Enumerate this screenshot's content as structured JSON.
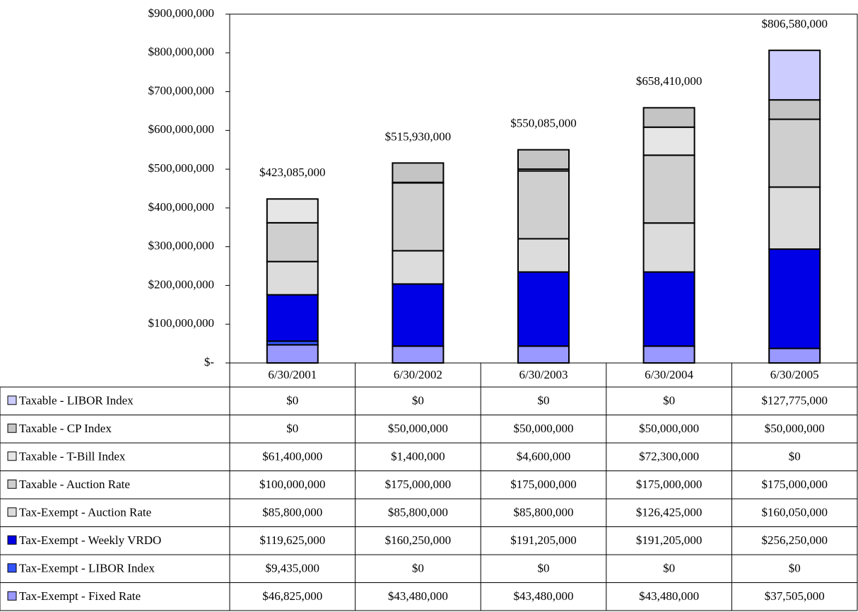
{
  "chart_data": {
    "type": "stacked-bar",
    "categories": [
      "6/30/2001",
      "6/30/2002",
      "6/30/2003",
      "6/30/2004",
      "6/30/2005"
    ],
    "series": [
      {
        "name": "Taxable - LIBOR Index",
        "color": "#ccccff",
        "values": [
          0,
          0,
          0,
          0,
          127775000
        ],
        "value_labels": [
          "$0",
          "$0",
          "$0",
          "$0",
          "$127,775,000"
        ]
      },
      {
        "name": "Taxable - CP Index",
        "color": "#c4c4c4",
        "values": [
          0,
          50000000,
          50000000,
          50000000,
          50000000
        ],
        "value_labels": [
          "$0",
          "$50,000,000",
          "$50,000,000",
          "$50,000,000",
          "$50,000,000"
        ]
      },
      {
        "name": "Taxable - T-Bill Index",
        "color": "#e6e6e6",
        "values": [
          61400000,
          1400000,
          4600000,
          72300000,
          0
        ],
        "value_labels": [
          "$61,400,000",
          "$1,400,000",
          "$4,600,000",
          "$72,300,000",
          "$0"
        ]
      },
      {
        "name": "Taxable - Auction Rate",
        "color": "#cfcfcf",
        "values": [
          100000000,
          175000000,
          175000000,
          175000000,
          175000000
        ],
        "value_labels": [
          "$100,000,000",
          "$175,000,000",
          "$175,000,000",
          "$175,000,000",
          "$175,000,000"
        ]
      },
      {
        "name": "Tax-Exempt - Auction Rate",
        "color": "#dcdcdc",
        "values": [
          85800000,
          85800000,
          85800000,
          126425000,
          160050000
        ],
        "value_labels": [
          "$85,800,000",
          "$85,800,000",
          "$85,800,000",
          "$126,425,000",
          "$160,050,000"
        ]
      },
      {
        "name": "Tax-Exempt - Weekly VRDO",
        "color": "#0000e6",
        "values": [
          119625000,
          160250000,
          191205000,
          191205000,
          256250000
        ],
        "value_labels": [
          "$119,625,000",
          "$160,250,000",
          "$191,205,000",
          "$191,205,000",
          "$256,250,000"
        ]
      },
      {
        "name": "Tax-Exempt - LIBOR Index",
        "color": "#3355ff",
        "values": [
          9435000,
          0,
          0,
          0,
          0
        ],
        "value_labels": [
          "$9,435,000",
          "$0",
          "$0",
          "$0",
          "$0"
        ]
      },
      {
        "name": "Tax-Exempt - Fixed Rate",
        "color": "#9999ff",
        "values": [
          46825000,
          43480000,
          43480000,
          43480000,
          37505000
        ],
        "value_labels": [
          "$46,825,000",
          "$43,480,000",
          "$43,480,000",
          "$43,480,000",
          "$37,505,000"
        ]
      }
    ],
    "totals": [
      423085000,
      515930000,
      550085000,
      658410000,
      806580000
    ],
    "total_labels": [
      "$423,085,000",
      "$515,930,000",
      "$550,085,000",
      "$658,410,000",
      "$806,580,000"
    ],
    "ylim": [
      0,
      900000000
    ],
    "yticks": [
      {
        "value": 0,
        "label": "$-"
      },
      {
        "value": 100000000,
        "label": "$100,000,000"
      },
      {
        "value": 200000000,
        "label": "$200,000,000"
      },
      {
        "value": 300000000,
        "label": "$300,000,000"
      },
      {
        "value": 400000000,
        "label": "$400,000,000"
      },
      {
        "value": 500000000,
        "label": "$500,000,000"
      },
      {
        "value": 600000000,
        "label": "$600,000,000"
      },
      {
        "value": 700000000,
        "label": "$700,000,000"
      },
      {
        "value": 800000000,
        "label": "$800,000,000"
      },
      {
        "value": 900000000,
        "label": "$900,000,000"
      }
    ]
  }
}
